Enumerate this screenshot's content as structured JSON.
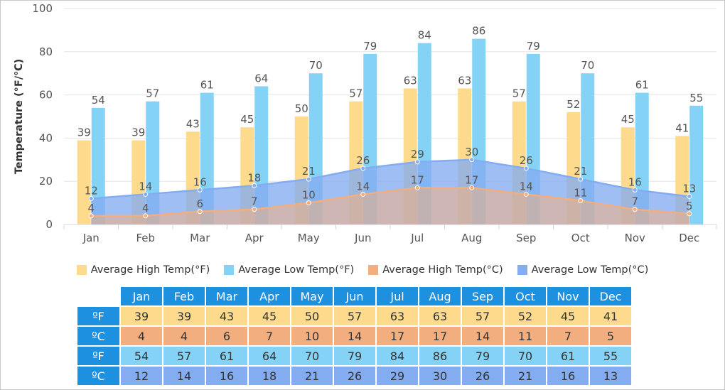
{
  "chart_data": {
    "type": "bar",
    "ylabel": "Temperature (°F/℃)",
    "ylim": [
      0,
      100
    ],
    "yticks": [
      0,
      20,
      40,
      60,
      80,
      100
    ],
    "categories": [
      "Jan",
      "Feb",
      "Mar",
      "Apr",
      "May",
      "Jun",
      "Jul",
      "Aug",
      "Sep",
      "Oct",
      "Nov",
      "Dec"
    ],
    "grid": true,
    "legend_position": "bottom",
    "series": [
      {
        "name": "Average High Temp(°F)",
        "kind": "bar",
        "color": "#fedb8c",
        "values": [
          39,
          39,
          43,
          45,
          50,
          57,
          63,
          63,
          57,
          52,
          45,
          41
        ]
      },
      {
        "name": "Average Low Temp(°F)",
        "kind": "bar",
        "color": "#84d3f6",
        "values": [
          54,
          57,
          61,
          64,
          70,
          79,
          84,
          86,
          79,
          70,
          61,
          55
        ]
      },
      {
        "name": "Average High Temp(°C)",
        "kind": "area",
        "color": "#f2ae7e",
        "values": [
          4,
          4,
          6,
          7,
          10,
          14,
          17,
          17,
          14,
          11,
          7,
          5
        ]
      },
      {
        "name": "Average Low Temp(°C)",
        "kind": "area",
        "color": "#84acf1",
        "values": [
          12,
          14,
          16,
          18,
          21,
          26,
          29,
          30,
          26,
          21,
          16,
          13
        ]
      }
    ]
  },
  "table": {
    "months": [
      "Jan",
      "Feb",
      "Mar",
      "Apr",
      "May",
      "Jun",
      "Jul",
      "Aug",
      "Sep",
      "Oct",
      "Nov",
      "Dec"
    ],
    "rows": [
      {
        "label": "ºF",
        "class": "r-hf",
        "values": [
          "39",
          "39",
          "43",
          "45",
          "50",
          "57",
          "63",
          "63",
          "57",
          "52",
          "45",
          "41"
        ]
      },
      {
        "label": "ºC",
        "class": "r-hc",
        "values": [
          "4",
          "4",
          "6",
          "7",
          "10",
          "14",
          "17",
          "17",
          "14",
          "11",
          "7",
          "5"
        ]
      },
      {
        "label": "ºF",
        "class": "r-lf",
        "values": [
          "54",
          "57",
          "61",
          "64",
          "70",
          "79",
          "84",
          "86",
          "79",
          "70",
          "61",
          "55"
        ]
      },
      {
        "label": "ºC",
        "class": "r-lc",
        "values": [
          "12",
          "14",
          "16",
          "18",
          "21",
          "26",
          "29",
          "30",
          "26",
          "21",
          "16",
          "13"
        ]
      }
    ]
  }
}
